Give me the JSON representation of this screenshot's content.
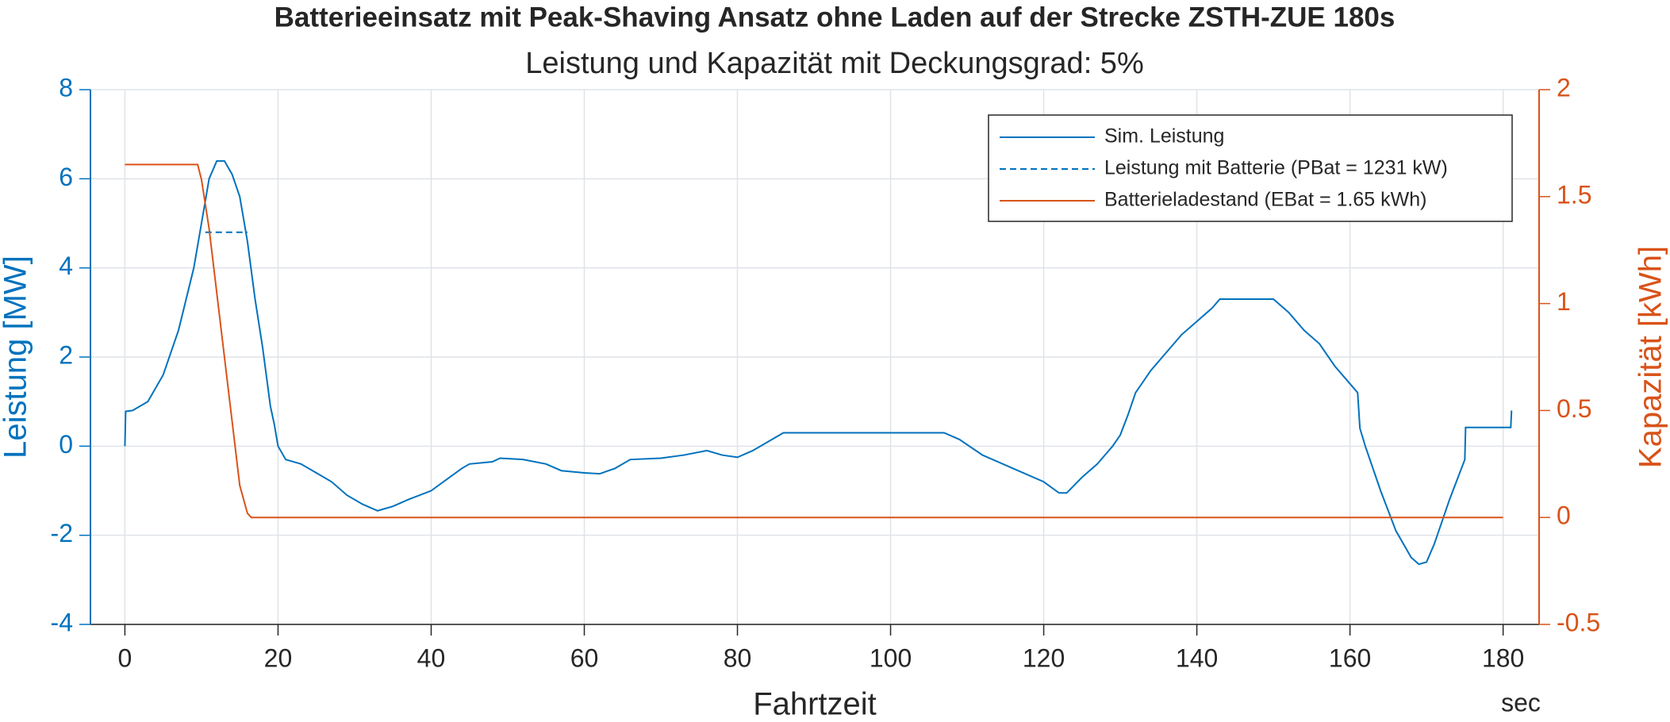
{
  "chart_data": {
    "type": "line",
    "title": "Batterieeinsatz mit Peak-Shaving Ansatz ohne Laden auf der Strecke ZSTH-ZUE 180s",
    "subtitle": "Leistung und Kapazität mit Deckungsgrad: 5%",
    "x_label": "Fahrtzeit",
    "x_unit": "sec",
    "y_label": "Leistung [MW]",
    "y2_label": "Kapazität [kWh]",
    "xlim": [
      -4.5,
      184.7
    ],
    "xticks": [
      0,
      20,
      40,
      60,
      80,
      100,
      120,
      140,
      160,
      180
    ],
    "ylim": [
      -4,
      8
    ],
    "yticks": [
      -4,
      -2,
      0,
      2,
      4,
      6,
      8
    ],
    "y2lim": [
      -0.5,
      2
    ],
    "y2ticks": [
      -0.5,
      0,
      0.5,
      1,
      1.5,
      2
    ],
    "grid": true,
    "legend": "northeast",
    "series": [
      {
        "name": "Sim. Leistung",
        "color": "#0072BD",
        "style": "solid",
        "x": [
          0,
          0.1,
          1,
          3,
          5,
          7,
          9,
          10,
          11,
          12,
          13,
          14,
          15,
          16,
          17,
          18,
          19,
          19.5,
          20,
          21,
          23,
          25,
          27,
          29,
          31,
          33,
          35,
          37,
          40,
          42,
          44,
          45,
          48,
          49,
          52,
          55,
          57,
          60,
          62,
          64,
          66,
          70,
          73,
          76,
          78,
          80,
          82,
          84,
          86,
          90,
          100,
          107,
          109,
          112,
          116,
          120,
          122,
          123,
          125,
          127,
          129,
          130,
          131,
          132,
          134,
          136,
          138,
          140,
          142,
          143,
          150,
          152,
          154,
          156,
          158,
          160,
          161,
          161.3,
          162,
          164,
          166,
          168,
          169,
          170,
          171,
          173,
          175,
          175.1,
          181,
          181.1
        ],
        "values": [
          0,
          0.78,
          0.8,
          1.0,
          1.6,
          2.6,
          4.0,
          5.0,
          6.0,
          6.4,
          6.4,
          6.1,
          5.6,
          4.6,
          3.3,
          2.2,
          0.9,
          0.5,
          0,
          -0.3,
          -0.4,
          -0.6,
          -0.8,
          -1.1,
          -1.3,
          -1.45,
          -1.35,
          -1.2,
          -1.0,
          -0.75,
          -0.5,
          -0.4,
          -0.35,
          -0.27,
          -0.3,
          -0.4,
          -0.55,
          -0.6,
          -0.62,
          -0.5,
          -0.3,
          -0.27,
          -0.2,
          -0.1,
          -0.2,
          -0.25,
          -0.1,
          0.1,
          0.3,
          0.3,
          0.3,
          0.3,
          0.15,
          -0.2,
          -0.5,
          -0.8,
          -1.05,
          -1.05,
          -0.7,
          -0.4,
          0,
          0.25,
          0.7,
          1.2,
          1.7,
          2.1,
          2.5,
          2.8,
          3.1,
          3.3,
          3.3,
          3.0,
          2.6,
          2.3,
          1.8,
          1.4,
          1.2,
          0.4,
          0,
          -1.0,
          -1.9,
          -2.5,
          -2.65,
          -2.6,
          -2.2,
          -1.2,
          -0.3,
          0.42,
          0.42,
          0.8
        ]
      },
      {
        "name": "Leistung mit Batterie (PBat = 1231 kW)",
        "color": "#0072BD",
        "style": "dashed",
        "x": [
          10.5,
          16
        ],
        "values": [
          4.8,
          4.8
        ]
      },
      {
        "name": "Batterieladestand (EBat = 1.65 kWh)",
        "color": "#D95319",
        "style": "solid",
        "axis": "y2",
        "x": [
          0,
          9.5,
          10,
          11,
          12,
          13,
          14,
          15,
          16,
          16.5,
          180
        ],
        "values": [
          1.65,
          1.65,
          1.58,
          1.35,
          1.05,
          0.75,
          0.45,
          0.15,
          0.02,
          0,
          0
        ]
      }
    ]
  }
}
